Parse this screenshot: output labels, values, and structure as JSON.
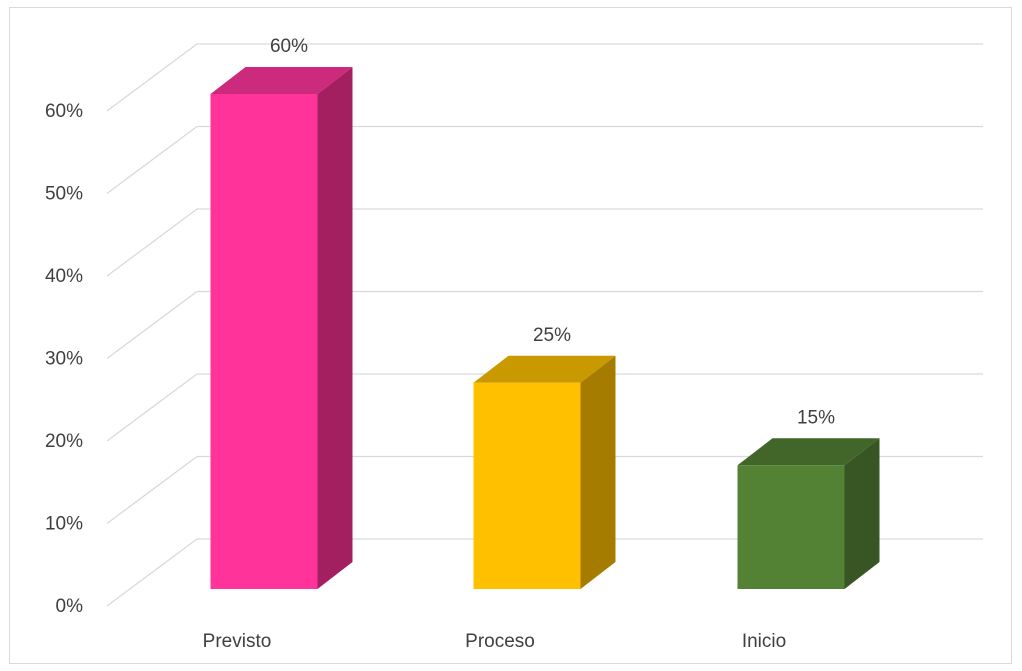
{
  "chart_data": {
    "type": "bar",
    "three_d": true,
    "title": "",
    "xlabel": "",
    "ylabel": "",
    "categories": [
      "Previsto",
      "Proceso",
      "Inicio"
    ],
    "values": [
      0.6,
      0.25,
      0.15
    ],
    "value_labels": [
      "60%",
      "25%",
      "15%"
    ],
    "ylim": [
      0,
      0.6
    ],
    "y_ticks": [
      0,
      0.1,
      0.2,
      0.3,
      0.4,
      0.5,
      0.6
    ],
    "y_tick_labels": [
      "0%",
      "10%",
      "20%",
      "30%",
      "40%",
      "50%",
      "60%"
    ],
    "grid": true,
    "legend": "none",
    "colors": {
      "front": [
        "#ff3399",
        "#ffc000",
        "#548235"
      ],
      "side": [
        "#a31f60",
        "#a67c00",
        "#375623"
      ],
      "top": [
        "#cc2a7c",
        "#c99a00",
        "#426629"
      ],
      "grid": "#d9d9d9",
      "text": "#404040"
    }
  }
}
